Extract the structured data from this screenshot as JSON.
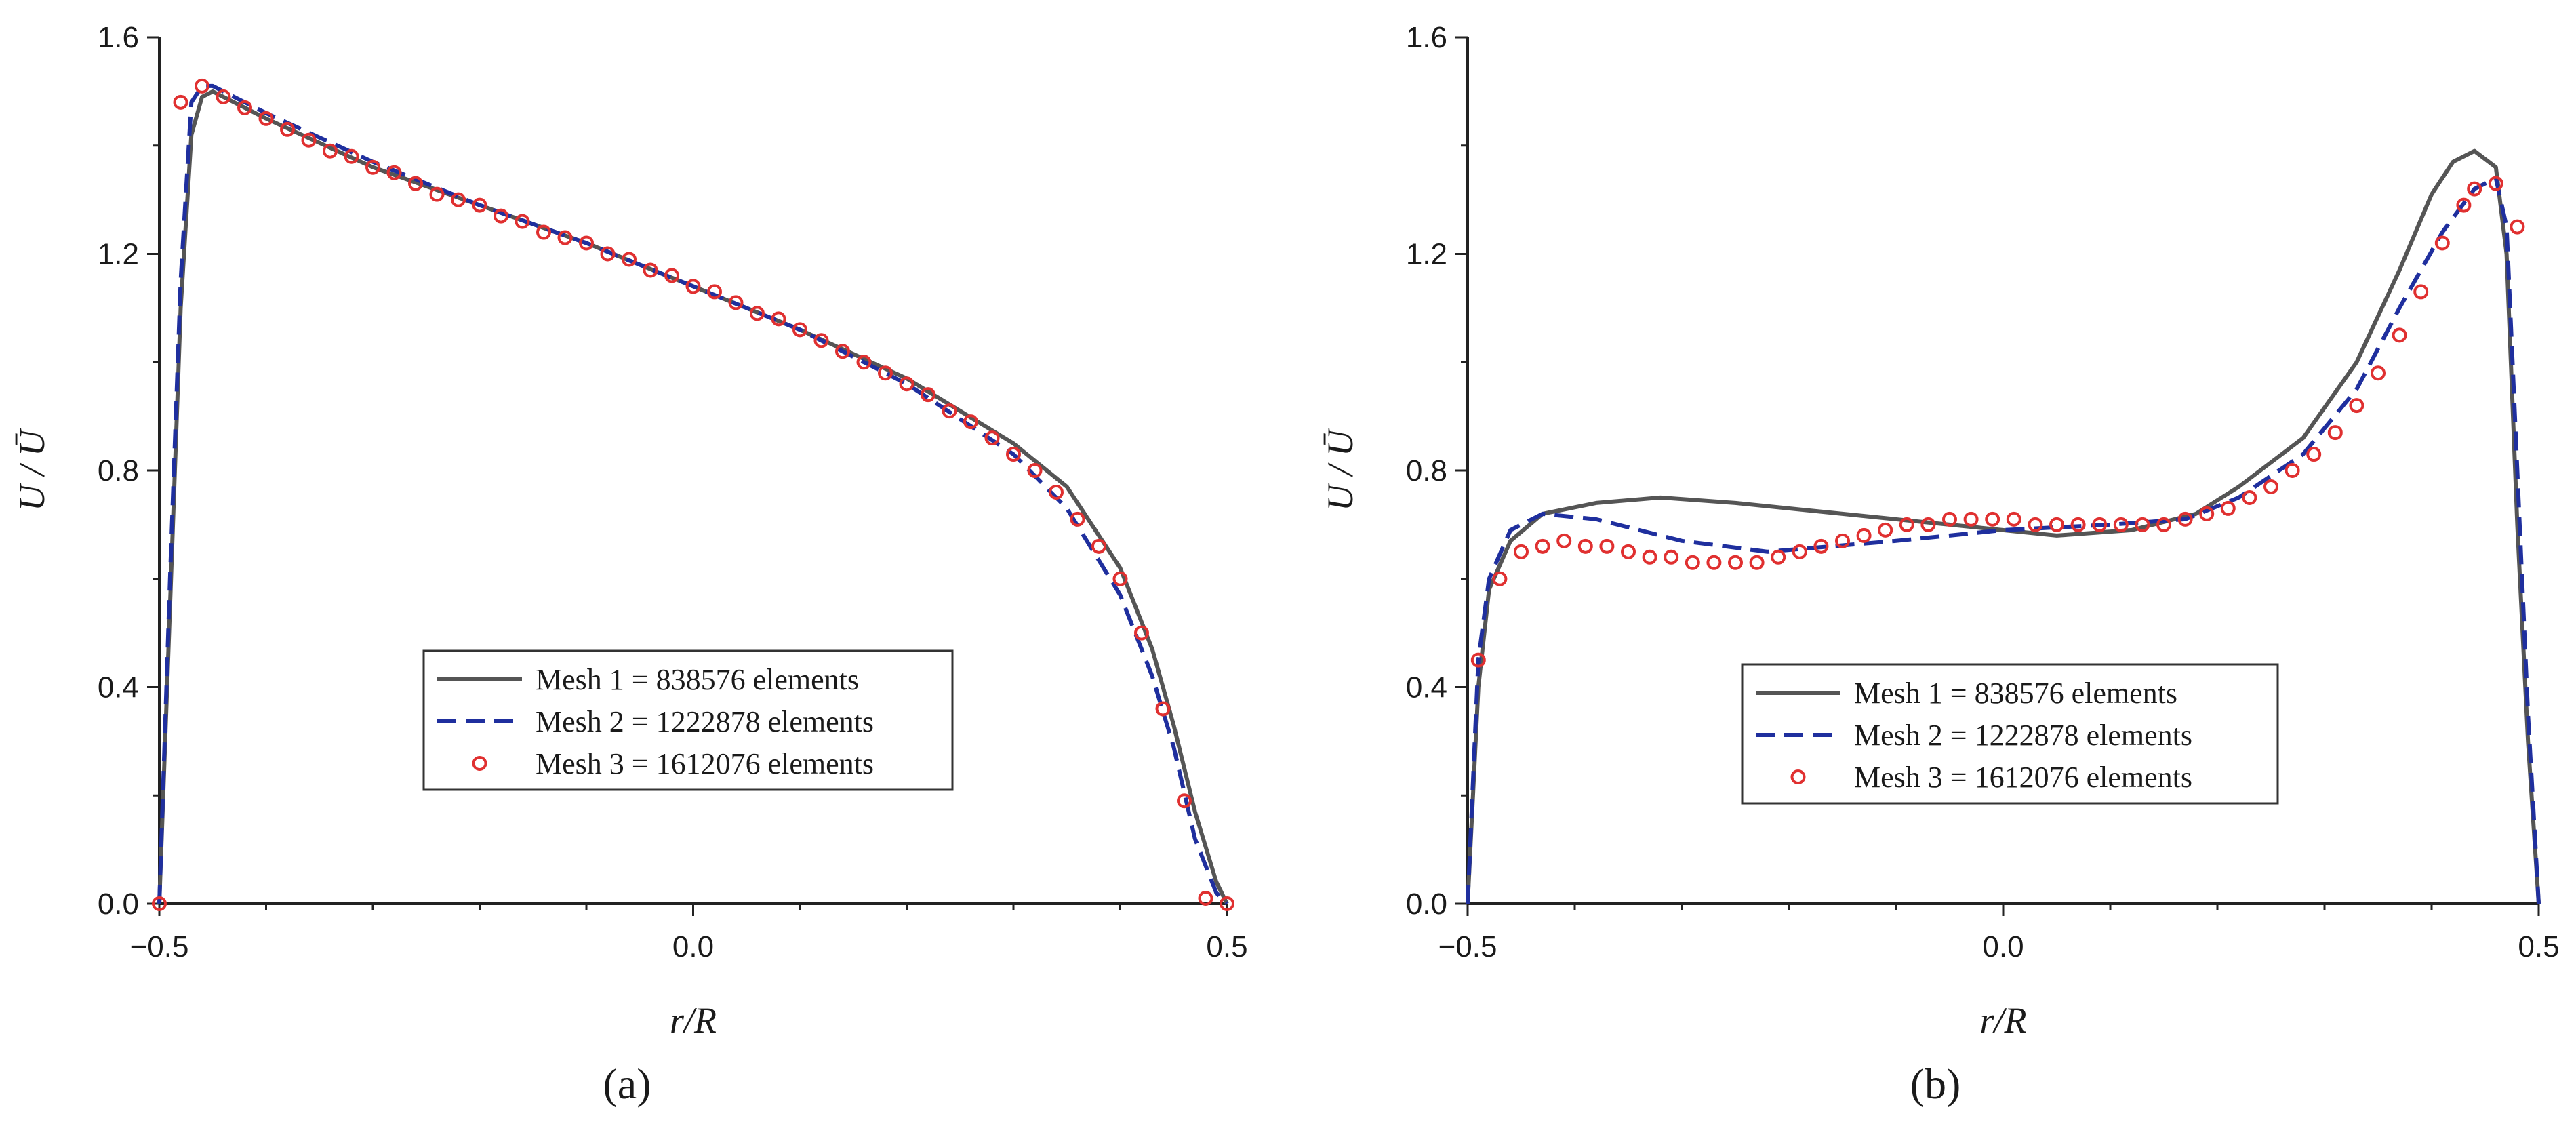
{
  "chart_data": [
    {
      "type": "line",
      "panel_label": "(a)",
      "xlabel": "r/R",
      "ylabel": "U / Ū",
      "xlim": [
        -0.5,
        0.5
      ],
      "ylim": [
        0.0,
        1.6
      ],
      "x_ticks": [
        "-0.5",
        "0.0",
        "0.5"
      ],
      "y_ticks": [
        "0.0",
        "0.4",
        "0.8",
        "1.2",
        "1.6"
      ],
      "legend_position": "lower-center",
      "grid": false,
      "series": [
        {
          "name": "Mesh 1 = 838576 elements",
          "style": "solid",
          "color": "#555555",
          "points": [
            [
              -0.5,
              0.0
            ],
            [
              -0.49,
              0.55
            ],
            [
              -0.48,
              1.1
            ],
            [
              -0.47,
              1.42
            ],
            [
              -0.46,
              1.49
            ],
            [
              -0.45,
              1.5
            ],
            [
              -0.4,
              1.45
            ],
            [
              -0.3,
              1.36
            ],
            [
              -0.2,
              1.29
            ],
            [
              -0.1,
              1.22
            ],
            [
              0.0,
              1.14
            ],
            [
              0.1,
              1.06
            ],
            [
              0.2,
              0.97
            ],
            [
              0.3,
              0.85
            ],
            [
              0.35,
              0.77
            ],
            [
              0.4,
              0.62
            ],
            [
              0.43,
              0.47
            ],
            [
              0.45,
              0.33
            ],
            [
              0.47,
              0.17
            ],
            [
              0.49,
              0.04
            ],
            [
              0.5,
              0.0
            ]
          ]
        },
        {
          "name": "Mesh 2 = 1222878 elements",
          "style": "dashed",
          "color": "#1f2f9e",
          "points": [
            [
              -0.5,
              0.0
            ],
            [
              -0.49,
              0.6
            ],
            [
              -0.48,
              1.15
            ],
            [
              -0.47,
              1.48
            ],
            [
              -0.46,
              1.51
            ],
            [
              -0.45,
              1.51
            ],
            [
              -0.4,
              1.46
            ],
            [
              -0.3,
              1.37
            ],
            [
              -0.2,
              1.29
            ],
            [
              -0.1,
              1.22
            ],
            [
              0.0,
              1.14
            ],
            [
              0.1,
              1.06
            ],
            [
              0.2,
              0.96
            ],
            [
              0.3,
              0.83
            ],
            [
              0.35,
              0.73
            ],
            [
              0.4,
              0.57
            ],
            [
              0.43,
              0.42
            ],
            [
              0.45,
              0.29
            ],
            [
              0.47,
              0.12
            ],
            [
              0.49,
              0.02
            ],
            [
              0.5,
              0.0
            ]
          ]
        },
        {
          "name": "Mesh 3 = 1612076 elements",
          "style": "markers",
          "color": "#e03030",
          "points": [
            [
              -0.5,
              0.0
            ],
            [
              -0.48,
              1.48
            ],
            [
              -0.46,
              1.51
            ],
            [
              -0.44,
              1.49
            ],
            [
              -0.42,
              1.47
            ],
            [
              -0.4,
              1.45
            ],
            [
              -0.38,
              1.43
            ],
            [
              -0.36,
              1.41
            ],
            [
              -0.34,
              1.39
            ],
            [
              -0.32,
              1.38
            ],
            [
              -0.3,
              1.36
            ],
            [
              -0.28,
              1.35
            ],
            [
              -0.26,
              1.33
            ],
            [
              -0.24,
              1.31
            ],
            [
              -0.22,
              1.3
            ],
            [
              -0.2,
              1.29
            ],
            [
              -0.18,
              1.27
            ],
            [
              -0.16,
              1.26
            ],
            [
              -0.14,
              1.24
            ],
            [
              -0.12,
              1.23
            ],
            [
              -0.1,
              1.22
            ],
            [
              -0.08,
              1.2
            ],
            [
              -0.06,
              1.19
            ],
            [
              -0.04,
              1.17
            ],
            [
              -0.02,
              1.16
            ],
            [
              0.0,
              1.14
            ],
            [
              0.02,
              1.13
            ],
            [
              0.04,
              1.11
            ],
            [
              0.06,
              1.09
            ],
            [
              0.08,
              1.08
            ],
            [
              0.1,
              1.06
            ],
            [
              0.12,
              1.04
            ],
            [
              0.14,
              1.02
            ],
            [
              0.16,
              1.0
            ],
            [
              0.18,
              0.98
            ],
            [
              0.2,
              0.96
            ],
            [
              0.22,
              0.94
            ],
            [
              0.24,
              0.91
            ],
            [
              0.26,
              0.89
            ],
            [
              0.28,
              0.86
            ],
            [
              0.3,
              0.83
            ],
            [
              0.32,
              0.8
            ],
            [
              0.34,
              0.76
            ],
            [
              0.36,
              0.71
            ],
            [
              0.38,
              0.66
            ],
            [
              0.4,
              0.6
            ],
            [
              0.42,
              0.5
            ],
            [
              0.44,
              0.36
            ],
            [
              0.46,
              0.19
            ],
            [
              0.48,
              0.01
            ],
            [
              0.5,
              0.0
            ]
          ]
        }
      ]
    },
    {
      "type": "line",
      "panel_label": "(b)",
      "xlabel": "r/R",
      "ylabel": "U / Ū",
      "xlim": [
        -0.5,
        0.5
      ],
      "ylim": [
        0.0,
        1.6
      ],
      "x_ticks": [
        "-0.5",
        "0.0",
        "0.5"
      ],
      "y_ticks": [
        "0.0",
        "0.4",
        "0.8",
        "1.2",
        "1.6"
      ],
      "legend_position": "center",
      "grid": false,
      "series": [
        {
          "name": "Mesh 1 = 838576 elements",
          "style": "solid",
          "color": "#555555",
          "points": [
            [
              -0.5,
              0.0
            ],
            [
              -0.49,
              0.4
            ],
            [
              -0.48,
              0.58
            ],
            [
              -0.46,
              0.67
            ],
            [
              -0.43,
              0.72
            ],
            [
              -0.38,
              0.74
            ],
            [
              -0.32,
              0.75
            ],
            [
              -0.25,
              0.74
            ],
            [
              -0.15,
              0.72
            ],
            [
              -0.05,
              0.7
            ],
            [
              0.05,
              0.68
            ],
            [
              0.12,
              0.69
            ],
            [
              0.18,
              0.72
            ],
            [
              0.22,
              0.77
            ],
            [
              0.28,
              0.86
            ],
            [
              0.33,
              1.0
            ],
            [
              0.37,
              1.17
            ],
            [
              0.4,
              1.31
            ],
            [
              0.42,
              1.37
            ],
            [
              0.44,
              1.39
            ],
            [
              0.46,
              1.36
            ],
            [
              0.47,
              1.2
            ],
            [
              0.48,
              0.7
            ],
            [
              0.49,
              0.3
            ],
            [
              0.5,
              0.0
            ]
          ]
        },
        {
          "name": "Mesh 2 = 1222878 elements",
          "style": "dashed",
          "color": "#1f2f9e",
          "points": [
            [
              -0.5,
              0.0
            ],
            [
              -0.49,
              0.45
            ],
            [
              -0.48,
              0.6
            ],
            [
              -0.46,
              0.69
            ],
            [
              -0.43,
              0.72
            ],
            [
              -0.38,
              0.71
            ],
            [
              -0.3,
              0.67
            ],
            [
              -0.22,
              0.65
            ],
            [
              -0.1,
              0.67
            ],
            [
              0.0,
              0.69
            ],
            [
              0.1,
              0.7
            ],
            [
              0.17,
              0.71
            ],
            [
              0.22,
              0.75
            ],
            [
              0.28,
              0.83
            ],
            [
              0.33,
              0.95
            ],
            [
              0.37,
              1.1
            ],
            [
              0.41,
              1.24
            ],
            [
              0.44,
              1.32
            ],
            [
              0.46,
              1.34
            ],
            [
              0.47,
              1.25
            ],
            [
              0.48,
              0.8
            ],
            [
              0.49,
              0.35
            ],
            [
              0.5,
              0.0
            ]
          ]
        },
        {
          "name": "Mesh 3 = 1612076 elements",
          "style": "markers",
          "color": "#e03030",
          "points": [
            [
              -0.49,
              0.45
            ],
            [
              -0.47,
              0.6
            ],
            [
              -0.45,
              0.65
            ],
            [
              -0.43,
              0.66
            ],
            [
              -0.41,
              0.67
            ],
            [
              -0.39,
              0.66
            ],
            [
              -0.37,
              0.66
            ],
            [
              -0.35,
              0.65
            ],
            [
              -0.33,
              0.64
            ],
            [
              -0.31,
              0.64
            ],
            [
              -0.29,
              0.63
            ],
            [
              -0.27,
              0.63
            ],
            [
              -0.25,
              0.63
            ],
            [
              -0.23,
              0.63
            ],
            [
              -0.21,
              0.64
            ],
            [
              -0.19,
              0.65
            ],
            [
              -0.17,
              0.66
            ],
            [
              -0.15,
              0.67
            ],
            [
              -0.13,
              0.68
            ],
            [
              -0.11,
              0.69
            ],
            [
              -0.09,
              0.7
            ],
            [
              -0.07,
              0.7
            ],
            [
              -0.05,
              0.71
            ],
            [
              -0.03,
              0.71
            ],
            [
              -0.01,
              0.71
            ],
            [
              0.01,
              0.71
            ],
            [
              0.03,
              0.7
            ],
            [
              0.05,
              0.7
            ],
            [
              0.07,
              0.7
            ],
            [
              0.09,
              0.7
            ],
            [
              0.11,
              0.7
            ],
            [
              0.13,
              0.7
            ],
            [
              0.15,
              0.7
            ],
            [
              0.17,
              0.71
            ],
            [
              0.19,
              0.72
            ],
            [
              0.21,
              0.73
            ],
            [
              0.23,
              0.75
            ],
            [
              0.25,
              0.77
            ],
            [
              0.27,
              0.8
            ],
            [
              0.29,
              0.83
            ],
            [
              0.31,
              0.87
            ],
            [
              0.33,
              0.92
            ],
            [
              0.35,
              0.98
            ],
            [
              0.37,
              1.05
            ],
            [
              0.39,
              1.13
            ],
            [
              0.41,
              1.22
            ],
            [
              0.43,
              1.29
            ],
            [
              0.44,
              1.32
            ],
            [
              0.46,
              1.33
            ],
            [
              0.48,
              1.25
            ]
          ]
        }
      ]
    }
  ]
}
